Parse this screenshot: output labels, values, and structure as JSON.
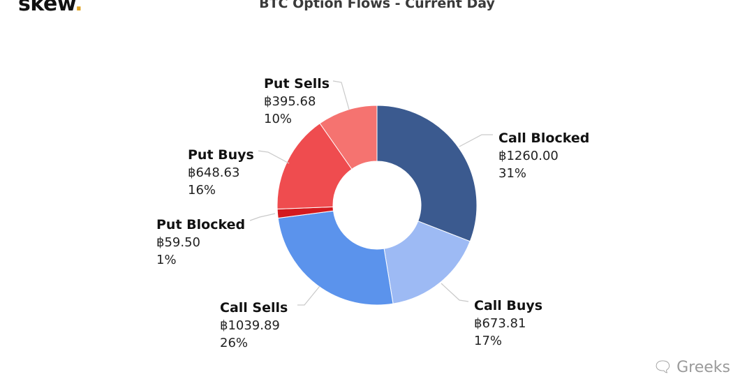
{
  "header": {
    "logo_text": "skew",
    "logo_dot": ".",
    "title": "BTC Option Flows - Current Day"
  },
  "watermark": {
    "text": "Greeks",
    "icon": "chat-bubbles-icon"
  },
  "chart_data": {
    "type": "pie",
    "title": "BTC Option Flows - Current Day",
    "donut": true,
    "currency_symbol": "฿",
    "slices": [
      {
        "name": "Call Blocked",
        "value": 1260.0,
        "value_label": "฿1260.00",
        "percent_label": "31%",
        "color": "#3b5a8f"
      },
      {
        "name": "Call Buys",
        "value": 673.81,
        "value_label": "฿673.81",
        "percent_label": "17%",
        "color": "#9dbaf4"
      },
      {
        "name": "Call Sells",
        "value": 1039.89,
        "value_label": "฿1039.89",
        "percent_label": "26%",
        "color": "#5b93ec"
      },
      {
        "name": "Put Blocked",
        "value": 59.5,
        "value_label": "฿59.50",
        "percent_label": "1%",
        "color": "#d31a1f"
      },
      {
        "name": "Put Buys",
        "value": 648.63,
        "value_label": "฿648.63",
        "percent_label": "16%",
        "color": "#ef4c4f"
      },
      {
        "name": "Put Sells",
        "value": 395.68,
        "value_label": "฿395.68",
        "percent_label": "10%",
        "color": "#f57370"
      }
    ]
  }
}
